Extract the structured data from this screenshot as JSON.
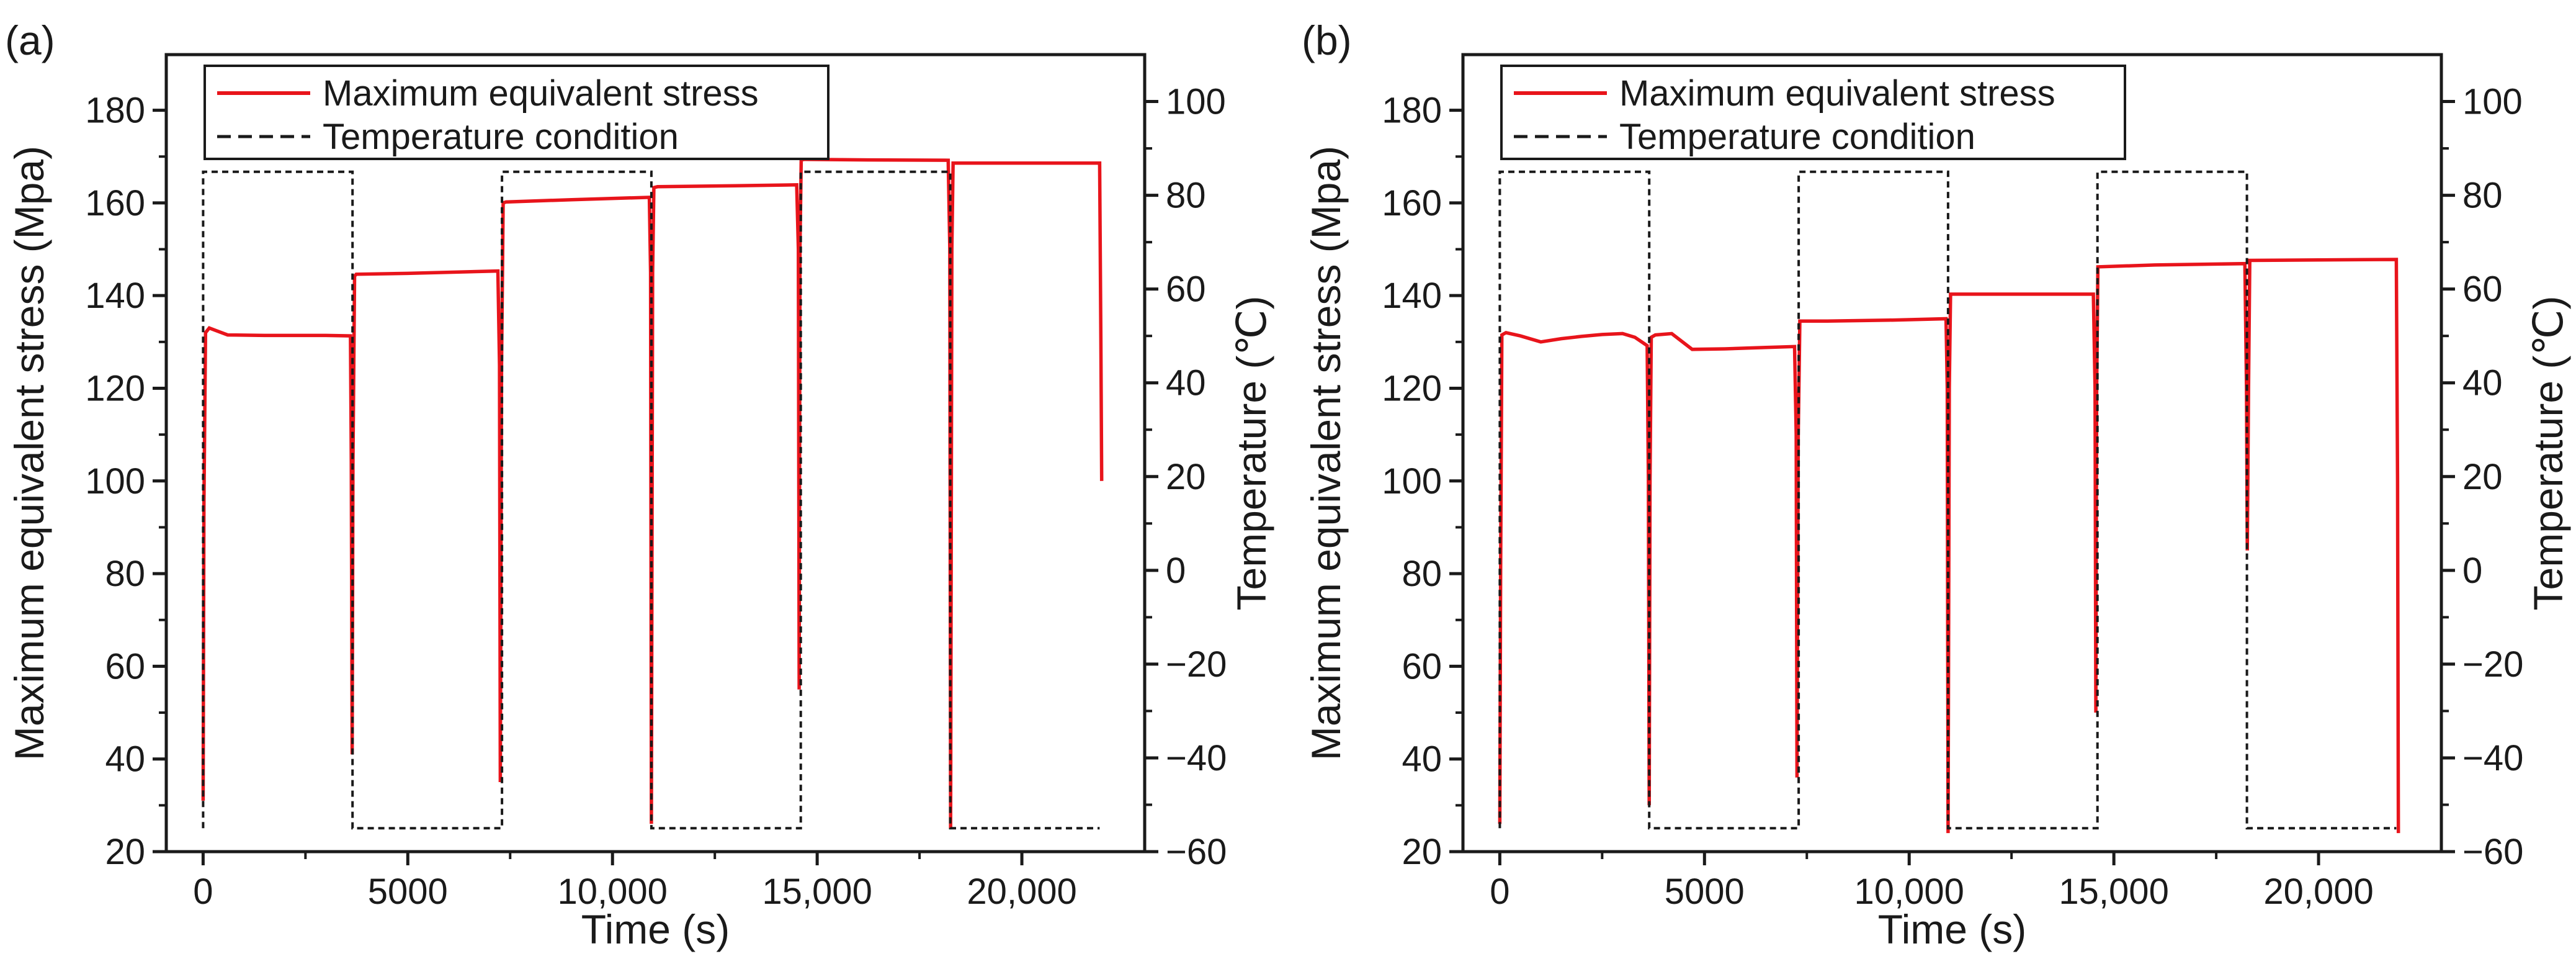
{
  "chart_data": [
    {
      "type": "line",
      "panel_label": "(a)",
      "xlabel": "Time (s)",
      "ylabel": "Maximum equivalent stress (Mpa)",
      "y2label": "Temperature (℃)",
      "xlim": [
        -900,
        23000
      ],
      "ylim": [
        20,
        192
      ],
      "y2lim": [
        -60,
        110
      ],
      "xticks": [
        0,
        5000,
        10000,
        15000,
        20000
      ],
      "xtick_labels": [
        "0",
        "5000",
        "10,000",
        "15,000",
        "20,000"
      ],
      "yticks": [
        20,
        40,
        60,
        80,
        100,
        120,
        140,
        160,
        180
      ],
      "y2ticks": [
        -60,
        -40,
        -20,
        0,
        20,
        40,
        60,
        80,
        100
      ],
      "y2tick_labels": [
        "−60",
        "−40",
        "−20",
        "0",
        "20",
        "40",
        "60",
        "80",
        "100"
      ],
      "legend": {
        "position": "top-left",
        "entries": [
          "Maximum equivalent stress",
          "Temperature condition"
        ]
      },
      "series": [
        {
          "name": "Maximum equivalent stress",
          "axis": "left",
          "color": "#e8141b",
          "style": "solid",
          "x": [
            0,
            20,
            60,
            150,
            300,
            600,
            1500,
            3000,
            3600,
            3620,
            3640,
            3660,
            3700,
            3740,
            5000,
            7200,
            7240,
            7260,
            7290,
            7330,
            7400,
            9000,
            10900,
            10930,
            10950,
            10980,
            11010,
            11100,
            13000,
            14500,
            14540,
            14560,
            14580,
            14610,
            14700,
            16000,
            18200,
            18240,
            18260,
            18290,
            18320,
            18400,
            20000,
            21900,
            21930,
            21950
          ],
          "y": [
            31,
            95,
            132,
            133,
            132.5,
            131.5,
            131.4,
            131.4,
            131.3,
            104,
            41,
            104,
            144.2,
            144.6,
            144.8,
            145.3,
            125,
            35,
            125,
            160,
            160.2,
            160.7,
            161.2,
            145,
            26,
            145,
            163.3,
            163.5,
            163.7,
            163.9,
            150,
            55,
            150,
            169.3,
            169.4,
            169.3,
            169.2,
            150,
            25,
            150,
            168.6,
            168.6,
            168.6,
            168.6,
            130,
            100
          ]
        },
        {
          "name": "Temperature condition",
          "axis": "right",
          "color": "#1a1a1a",
          "style": "dashed",
          "x": [
            0,
            0,
            3650,
            3650,
            7300,
            7300,
            10950,
            10950,
            14600,
            14600,
            18250,
            18250,
            21900,
            21900
          ],
          "y": [
            -55,
            85,
            85,
            -55,
            -55,
            85,
            85,
            -55,
            -55,
            85,
            85,
            -55,
            -55,
            -55
          ]
        }
      ]
    },
    {
      "type": "line",
      "panel_label": "(b)",
      "xlabel": "Time (s)",
      "ylabel": "Maximum equivalent stress (Mpa)",
      "y2label": "Temperature (℃)",
      "xlim": [
        -900,
        23000
      ],
      "ylim": [
        20,
        192
      ],
      "y2lim": [
        -60,
        110
      ],
      "xticks": [
        0,
        5000,
        10000,
        15000,
        20000
      ],
      "xtick_labels": [
        "0",
        "5000",
        "10,000",
        "15,000",
        "20,000"
      ],
      "yticks": [
        20,
        40,
        60,
        80,
        100,
        120,
        140,
        160,
        180
      ],
      "y2ticks": [
        -60,
        -40,
        -20,
        0,
        20,
        40,
        60,
        80,
        100
      ],
      "y2tick_labels": [
        "−60",
        "−40",
        "−20",
        "0",
        "20",
        "40",
        "60",
        "80",
        "100"
      ],
      "legend": {
        "position": "top-left",
        "entries": [
          "Maximum equivalent stress",
          "Temperature condition"
        ]
      },
      "series": [
        {
          "name": "Maximum equivalent stress",
          "axis": "left",
          "color": "#e8141b",
          "style": "solid",
          "x": [
            0,
            20,
            50,
            150,
            500,
            1000,
            1500,
            2000,
            2500,
            3000,
            3300,
            3500,
            3600,
            3630,
            3650,
            3670,
            3700,
            3800,
            4200,
            4700,
            5500,
            6500,
            7200,
            7240,
            7260,
            7290,
            7330,
            8000,
            9500,
            10900,
            10930,
            10950,
            10980,
            11010,
            12000,
            14500,
            14540,
            14560,
            14580,
            14610,
            16000,
            18200,
            18240,
            18260,
            18290,
            18320,
            20000,
            21900,
            21930,
            21950
          ],
          "y": [
            26,
            80,
            131.5,
            132,
            131.3,
            130,
            130.7,
            131.2,
            131.6,
            131.8,
            131,
            129.8,
            129.2,
            100,
            30,
            100,
            131,
            131.5,
            131.8,
            128.4,
            128.5,
            128.8,
            129,
            110,
            36,
            110,
            134.5,
            134.5,
            134.7,
            135,
            120,
            24,
            120,
            140.3,
            140.3,
            140.3,
            120,
            50,
            120,
            146.2,
            146.6,
            146.9,
            120,
            85,
            120,
            147.6,
            147.7,
            147.8,
            100,
            24
          ]
        },
        {
          "name": "Temperature condition",
          "axis": "right",
          "color": "#1a1a1a",
          "style": "dashed",
          "x": [
            0,
            0,
            3650,
            3650,
            7300,
            7300,
            10950,
            10950,
            14600,
            14600,
            18250,
            18250,
            21900,
            21900
          ],
          "y": [
            -55,
            85,
            85,
            -55,
            -55,
            85,
            85,
            -55,
            -55,
            85,
            85,
            -55,
            -55,
            -55
          ]
        }
      ]
    }
  ]
}
